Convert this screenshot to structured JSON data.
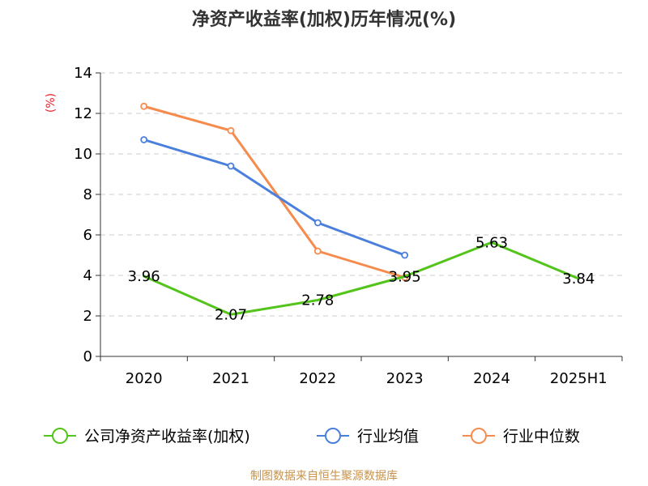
{
  "chart_data": {
    "type": "line",
    "title": "净资产收益率(加权)历年情况(%)",
    "ylabel": "(%)",
    "categories": [
      "2020",
      "2021",
      "2022",
      "2023",
      "2024",
      "2025H1"
    ],
    "ylim": [
      0,
      14
    ],
    "yticks": [
      0,
      2,
      4,
      6,
      8,
      10,
      12,
      14
    ],
    "grid": true,
    "legend_position": "bottom",
    "series": [
      {
        "name": "公司净资产收益率(加权)",
        "color": "#52c41a",
        "values": [
          3.96,
          2.07,
          2.78,
          3.95,
          5.63,
          3.84
        ],
        "labels": [
          "3.96",
          "2.07",
          "2.78",
          "3.95",
          "5.63",
          "3.84"
        ],
        "show_labels": true,
        "show_markers": false
      },
      {
        "name": "行业均值",
        "color": "#4a7fdc",
        "values": [
          10.7,
          9.4,
          6.6,
          5.0,
          null,
          null
        ],
        "show_labels": false,
        "show_markers": true
      },
      {
        "name": "行业中位数",
        "color": "#f58b4c",
        "values": [
          12.35,
          11.15,
          5.2,
          3.9,
          null,
          null
        ],
        "show_labels": false,
        "show_markers": true
      }
    ]
  },
  "source": "制图数据来自恒生聚源数据库"
}
